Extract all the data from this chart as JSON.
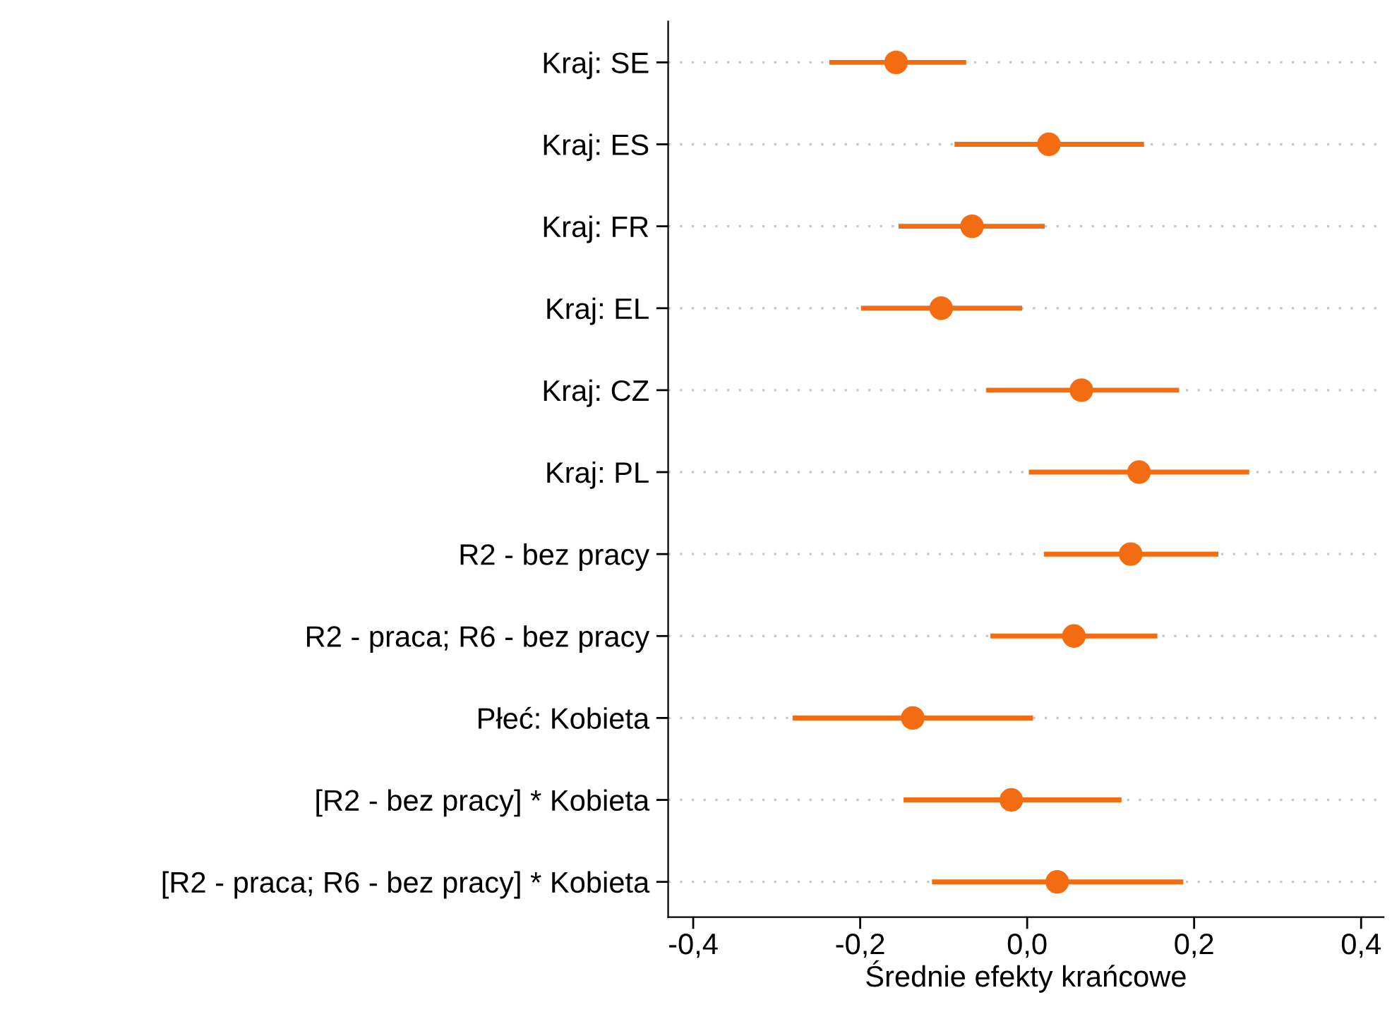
{
  "chart_data": {
    "type": "scatter",
    "orientation": "horizontal",
    "xlabel": "Średnie efekty krańcowe",
    "categories": [
      "Kraj: SE",
      "Kraj: ES",
      "Kraj: FR",
      "Kraj: EL",
      "Kraj: CZ",
      "Kraj: PL",
      "R2 - bez pracy",
      "R2 - praca; R6 - bez pracy",
      "Płeć: Kobieta",
      "[R2 - bez pracy] * Kobieta",
      "[R2 - praca; R6 - bez pracy] * Kobieta"
    ],
    "series": [
      {
        "color": "#f36c12",
        "values": [
          -0.157,
          0.026,
          -0.066,
          -0.103,
          0.065,
          0.134,
          0.124,
          0.056,
          -0.137,
          -0.019,
          0.036
        ],
        "errors": [
          [
            -0.237,
            -0.073
          ],
          [
            -0.087,
            0.14
          ],
          [
            -0.154,
            0.021
          ],
          [
            -0.199,
            -0.006
          ],
          [
            -0.049,
            0.182
          ],
          [
            0.002,
            0.266
          ],
          [
            0.02,
            0.229
          ],
          [
            -0.044,
            0.156
          ],
          [
            -0.281,
            0.007
          ],
          [
            -0.148,
            0.113
          ],
          [
            -0.114,
            0.187
          ]
        ]
      }
    ],
    "xlim": [
      -0.43,
      0.427
    ],
    "xticks": [
      {
        "value": -0.4,
        "label": "-0,4"
      },
      {
        "value": -0.2,
        "label": "-0,2"
      },
      {
        "value": 0.0,
        "label": "0,0"
      },
      {
        "value": 0.2,
        "label": "0,2"
      },
      {
        "value": 0.4,
        "label": "0,4"
      }
    ],
    "grid": "y",
    "marker": "circle",
    "legend": false
  }
}
